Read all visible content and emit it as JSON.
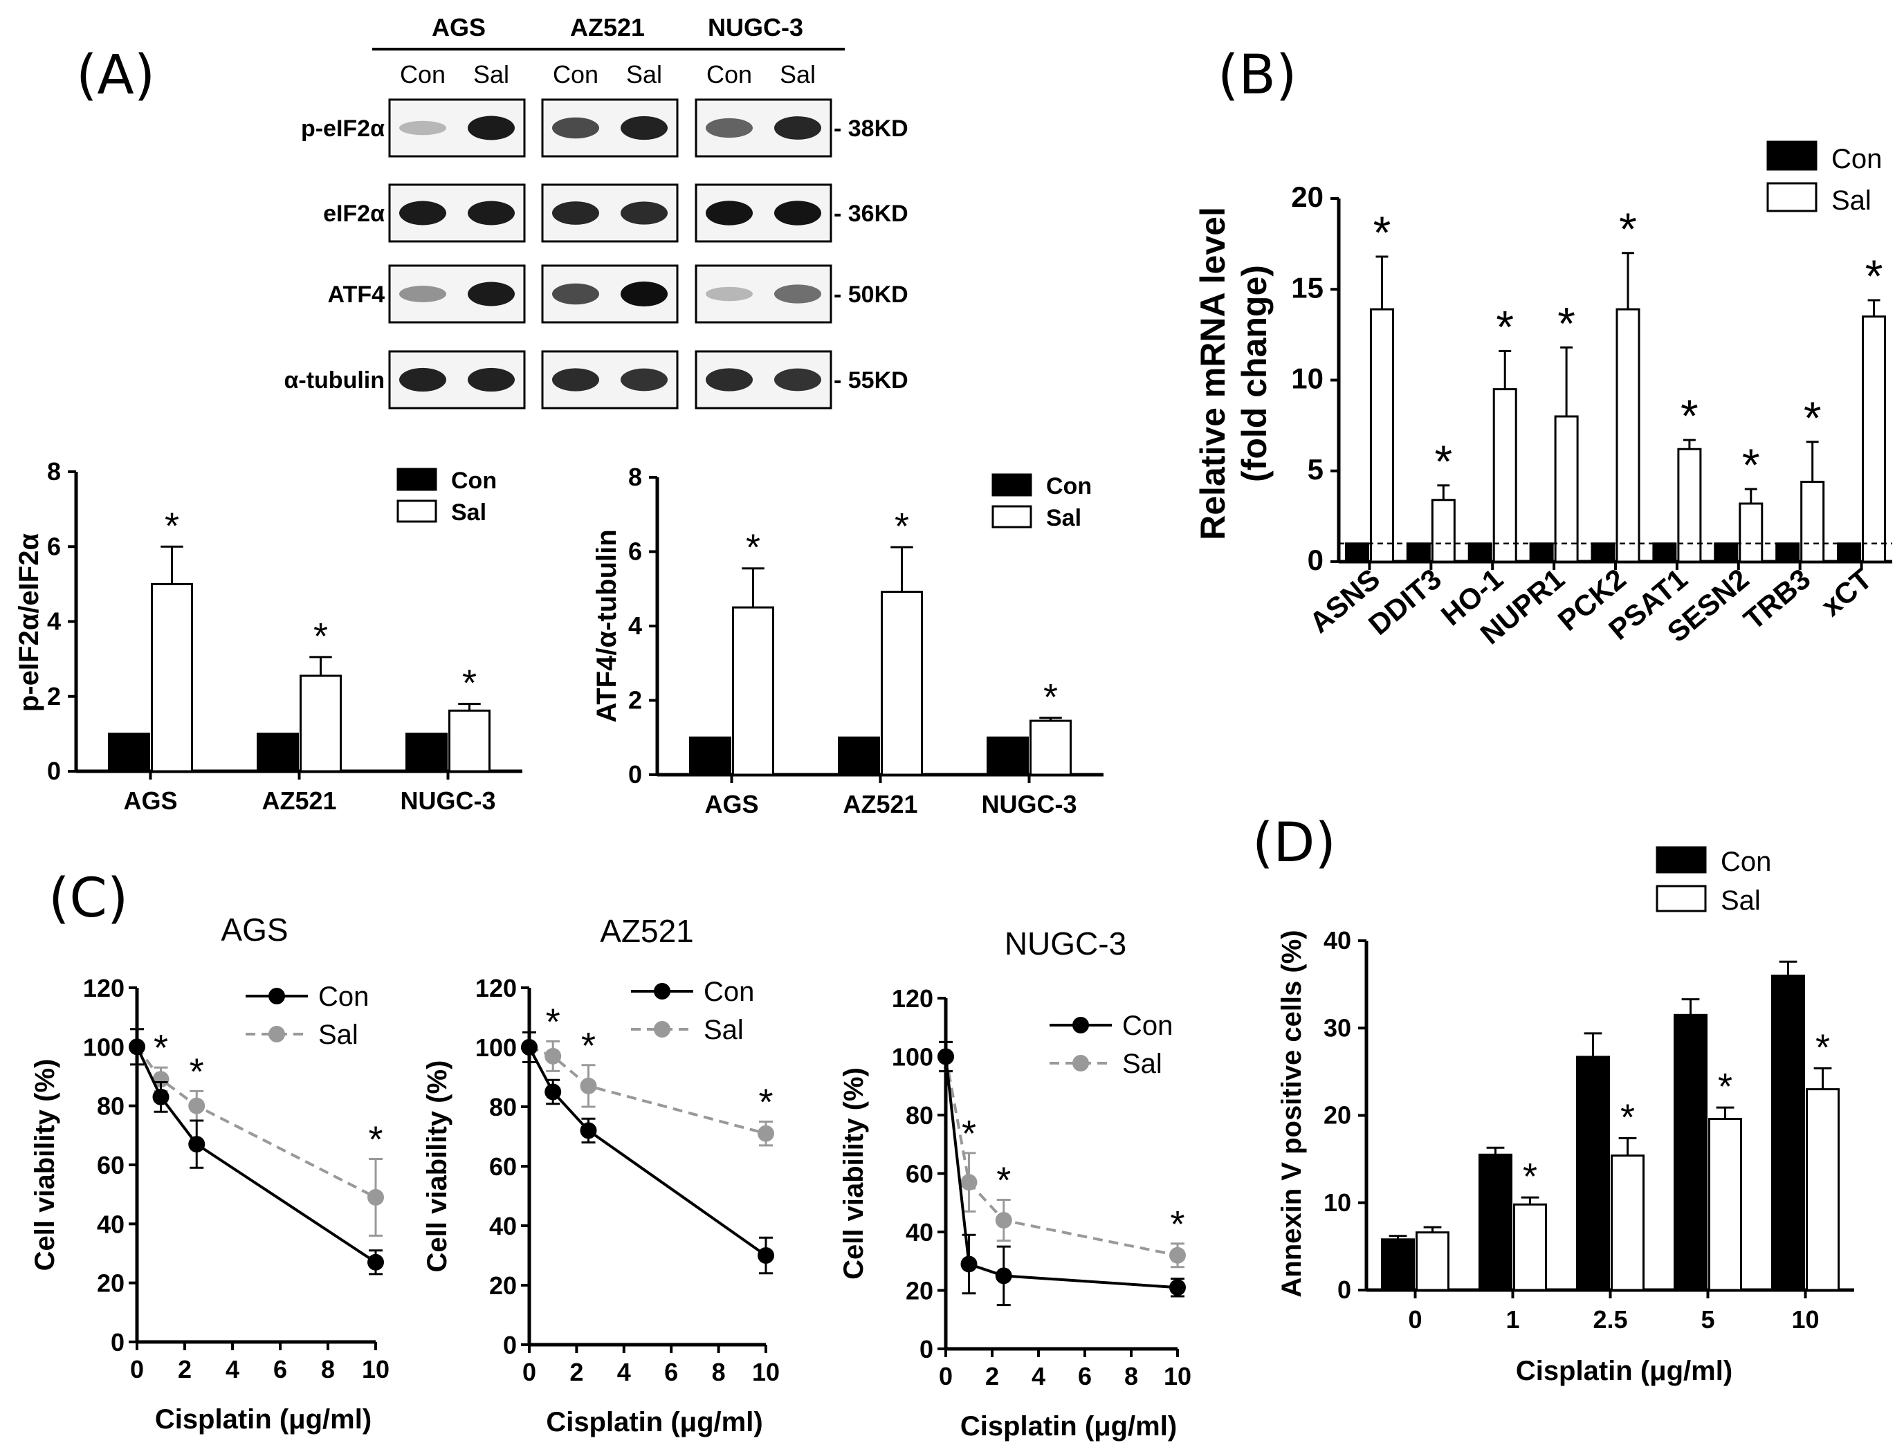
{
  "panel_labels": {
    "a": "(A)",
    "b": "(B)",
    "c": "(C)",
    "d": "(D)"
  },
  "blot": {
    "cell_lines": [
      "AGS",
      "AZ521",
      "NUGC-3"
    ],
    "lanes": [
      "Con",
      "Sal"
    ],
    "rows": [
      {
        "name": "p-eIF2α",
        "kd": "- 38KD",
        "con_intensity": [
          0.3,
          0.75,
          0.65
        ],
        "sal_intensity": [
          0.95,
          0.92,
          0.9
        ]
      },
      {
        "name": "eIF2α",
        "kd": "- 36KD",
        "con_intensity": [
          0.95,
          0.9,
          0.98
        ],
        "sal_intensity": [
          0.95,
          0.88,
          0.98
        ]
      },
      {
        "name": "ATF4",
        "kd": "- 50KD",
        "con_intensity": [
          0.45,
          0.75,
          0.3
        ],
        "sal_intensity": [
          0.95,
          1.0,
          0.6
        ]
      },
      {
        "name": "α-tubulin",
        "kd": "- 55KD",
        "con_intensity": [
          0.92,
          0.88,
          0.88
        ],
        "sal_intensity": [
          0.92,
          0.85,
          0.85
        ]
      }
    ]
  },
  "chart_data": [
    {
      "id": "A-left",
      "type": "bar",
      "categories": [
        "AGS",
        "AZ521",
        "NUGC-3"
      ],
      "series": [
        {
          "name": "Con",
          "values": [
            1,
            1,
            1
          ],
          "errors": [
            0,
            0,
            0
          ]
        },
        {
          "name": "Sal",
          "values": [
            5.0,
            2.55,
            1.62
          ],
          "errors": [
            1.0,
            0.5,
            0.18
          ]
        }
      ],
      "significance": [
        "*",
        "*",
        "*"
      ],
      "ylabel": "p-eIF2α/eIF2α",
      "ylim": [
        0,
        8
      ],
      "yticks": [
        "0",
        "2",
        "4",
        "6",
        "8"
      ],
      "legend": [
        "Con",
        "Sal"
      ]
    },
    {
      "id": "A-right",
      "type": "bar",
      "categories": [
        "AGS",
        "AZ521",
        "NUGC-3"
      ],
      "series": [
        {
          "name": "Con",
          "values": [
            1,
            1,
            1
          ],
          "errors": [
            0,
            0,
            0
          ]
        },
        {
          "name": "Sal",
          "values": [
            4.5,
            4.92,
            1.45
          ],
          "errors": [
            1.05,
            1.2,
            0.08
          ]
        }
      ],
      "significance": [
        "*",
        "*",
        "*"
      ],
      "ylabel": "ATF4/α-tubulin",
      "ylim": [
        0,
        8
      ],
      "yticks": [
        "0",
        "2",
        "4",
        "6",
        "8"
      ],
      "legend": [
        "Con",
        "Sal"
      ]
    },
    {
      "id": "B",
      "type": "bar",
      "categories": [
        "ASNS",
        "DDIT3",
        "HO-1",
        "NUPR1",
        "PCK2",
        "PSAT1",
        "SESN2",
        "TRB3",
        "xCT"
      ],
      "series": [
        {
          "name": "Con",
          "values": [
            1,
            1,
            1,
            1,
            1,
            1,
            1,
            1,
            1
          ],
          "errors": [
            0,
            0,
            0,
            0,
            0,
            0,
            0,
            0,
            0
          ]
        },
        {
          "name": "Sal",
          "values": [
            13.9,
            3.4,
            9.5,
            8.0,
            13.9,
            6.2,
            3.2,
            4.4,
            13.5
          ],
          "errors": [
            2.9,
            0.8,
            2.1,
            3.8,
            3.1,
            0.5,
            0.8,
            2.2,
            0.9
          ]
        }
      ],
      "significance": [
        "*",
        "*",
        "*",
        "*",
        "*",
        "*",
        "*",
        "*",
        "*"
      ],
      "ylabel": "Relative mRNA level",
      "ylabel2": "(fold change)",
      "ylim": [
        0,
        20
      ],
      "yticks": [
        "0",
        "5",
        "10",
        "15",
        "20"
      ],
      "reference_line": 1,
      "legend": [
        "Con",
        "Sal"
      ]
    },
    {
      "id": "C-AGS",
      "type": "line",
      "title": "AGS",
      "x": [
        0,
        1,
        2.5,
        10
      ],
      "series": [
        {
          "name": "Con",
          "values": [
            100,
            83,
            67,
            27
          ],
          "errors": [
            6,
            5,
            8,
            4
          ]
        },
        {
          "name": "Sal",
          "values": [
            100,
            89,
            80,
            49
          ],
          "errors": [
            6,
            4,
            5,
            13
          ]
        }
      ],
      "significance_x": [
        1,
        2.5,
        10
      ],
      "xlabel": "Cisplatin (μg/ml)",
      "ylabel": "Cell viability (%)",
      "xlim": [
        0,
        10
      ],
      "xticks": [
        "0",
        "2",
        "4",
        "6",
        "8",
        "10"
      ],
      "ylim": [
        0,
        120
      ],
      "yticks": [
        "0",
        "20",
        "40",
        "60",
        "80",
        "100",
        "120"
      ],
      "legend": [
        "Con",
        "Sal"
      ]
    },
    {
      "id": "C-AZ521",
      "type": "line",
      "title": "AZ521",
      "x": [
        0,
        1,
        2.5,
        10
      ],
      "series": [
        {
          "name": "Con",
          "values": [
            100,
            85,
            72,
            30
          ],
          "errors": [
            5,
            4,
            4,
            6
          ]
        },
        {
          "name": "Sal",
          "values": [
            100,
            97,
            87,
            71
          ],
          "errors": [
            5,
            5,
            7,
            4
          ]
        }
      ],
      "significance_x": [
        1,
        2.5,
        10
      ],
      "xlabel": "Cisplatin (μg/ml)",
      "ylabel": "Cell viability (%)",
      "xlim": [
        0,
        10
      ],
      "xticks": [
        "0",
        "2",
        "4",
        "6",
        "8",
        "10"
      ],
      "ylim": [
        0,
        120
      ],
      "yticks": [
        "0",
        "20",
        "40",
        "60",
        "80",
        "100",
        "120"
      ],
      "legend": [
        "Con",
        "Sal"
      ]
    },
    {
      "id": "C-NUGC-3",
      "type": "line",
      "title": "NUGC-3",
      "x": [
        0,
        1,
        2.5,
        10
      ],
      "series": [
        {
          "name": "Con",
          "values": [
            100,
            29,
            25,
            21
          ],
          "errors": [
            5,
            10,
            10,
            3
          ]
        },
        {
          "name": "Sal",
          "values": [
            100,
            57,
            44,
            32
          ],
          "errors": [
            5,
            10,
            7,
            4
          ]
        }
      ],
      "significance_x": [
        1,
        2.5,
        10
      ],
      "xlabel": "Cisplatin (μg/ml)",
      "ylabel": "Cell viability (%)",
      "xlim": [
        0,
        10
      ],
      "xticks": [
        "0",
        "2",
        "4",
        "6",
        "8",
        "10"
      ],
      "ylim": [
        0,
        120
      ],
      "yticks": [
        "0",
        "20",
        "40",
        "60",
        "80",
        "100",
        "120"
      ],
      "legend": [
        "Con",
        "Sal"
      ]
    },
    {
      "id": "D",
      "type": "bar",
      "categories": [
        "0",
        "1",
        "2.5",
        "5",
        "10"
      ],
      "series": [
        {
          "name": "Con",
          "values": [
            5.8,
            15.5,
            26.7,
            31.5,
            36.0
          ],
          "errors": [
            0.4,
            0.8,
            2.7,
            1.8,
            1.6
          ]
        },
        {
          "name": "Sal",
          "values": [
            6.6,
            9.8,
            15.4,
            19.6,
            23.0
          ],
          "errors": [
            0.6,
            0.8,
            2.0,
            1.3,
            2.4
          ]
        }
      ],
      "significance": [
        "",
        "*",
        "*",
        "*",
        "*"
      ],
      "xlabel": "Cisplatin (μg/ml)",
      "ylabel": "Annexin V positive cells (%)",
      "ylim": [
        0,
        40
      ],
      "yticks": [
        "0",
        "10",
        "20",
        "30",
        "40"
      ],
      "legend": [
        "Con",
        "Sal"
      ]
    }
  ]
}
